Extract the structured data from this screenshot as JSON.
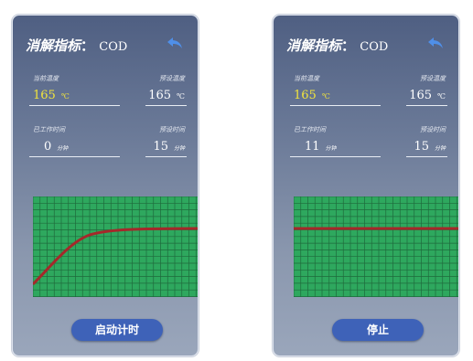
{
  "screens": [
    {
      "title_label": "消解指标",
      "title_sep": "：",
      "title_value": "COD",
      "current_temp_label": "当前温度",
      "current_temp_value": "165",
      "current_temp_unit": "℃",
      "preset_temp_label": "预设温度",
      "preset_temp_value": "165",
      "preset_temp_unit": "℃",
      "worked_time_label": "已工作时间",
      "worked_time_value": "0",
      "worked_time_unit": "分钟",
      "preset_time_label": "预设时间",
      "preset_time_value": "15",
      "preset_time_unit": "分钟",
      "button_label": "启动计时",
      "curve": "rising"
    },
    {
      "title_label": "消解指标",
      "title_sep": "：",
      "title_value": "COD",
      "current_temp_label": "当前温度",
      "current_temp_value": "165",
      "current_temp_unit": "℃",
      "preset_temp_label": "预设温度",
      "preset_temp_value": "165",
      "preset_temp_unit": "℃",
      "worked_time_label": "已工作时间",
      "worked_time_value": "11",
      "worked_time_unit": "分钟",
      "preset_time_label": "预设时间",
      "preset_time_value": "15",
      "preset_time_unit": "分钟",
      "button_label": "停止",
      "curve": "flat"
    }
  ],
  "colors": {
    "chart_background": "#2ea85e",
    "chart_grid": "#1f6a3c",
    "curve": "#a5282a",
    "button": "#3e62b8",
    "current_temp_highlight": "#f2e43c"
  },
  "icons": {
    "back": "back-arrow-icon"
  }
}
